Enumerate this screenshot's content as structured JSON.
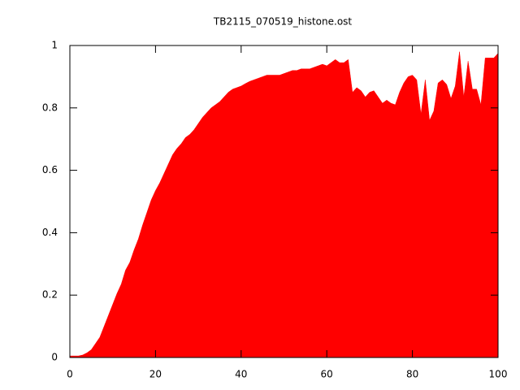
{
  "chart_data": {
    "type": "area",
    "title": "TB2115_070519_histone.ost",
    "x": [
      0,
      1,
      2,
      3,
      4,
      5,
      6,
      7,
      8,
      9,
      10,
      11,
      12,
      13,
      14,
      15,
      16,
      17,
      18,
      19,
      20,
      21,
      22,
      23,
      24,
      25,
      26,
      27,
      28,
      29,
      30,
      31,
      32,
      33,
      34,
      35,
      36,
      37,
      38,
      39,
      40,
      41,
      42,
      43,
      44,
      45,
      46,
      47,
      48,
      49,
      50,
      51,
      52,
      53,
      54,
      55,
      56,
      57,
      58,
      59,
      60,
      61,
      62,
      63,
      64,
      65,
      66,
      67,
      68,
      69,
      70,
      71,
      72,
      73,
      74,
      75,
      76,
      77,
      78,
      79,
      80,
      81,
      82,
      83,
      84,
      85,
      86,
      87,
      88,
      89,
      90,
      91,
      92,
      93,
      94,
      95,
      96,
      97,
      98,
      99,
      100
    ],
    "values": [
      0.005,
      0.005,
      0.005,
      0.008,
      0.015,
      0.025,
      0.045,
      0.065,
      0.1,
      0.135,
      0.17,
      0.205,
      0.235,
      0.28,
      0.305,
      0.345,
      0.38,
      0.425,
      0.465,
      0.505,
      0.535,
      0.56,
      0.59,
      0.62,
      0.65,
      0.67,
      0.685,
      0.705,
      0.715,
      0.73,
      0.75,
      0.77,
      0.785,
      0.8,
      0.81,
      0.82,
      0.835,
      0.85,
      0.86,
      0.865,
      0.87,
      0.878,
      0.885,
      0.89,
      0.895,
      0.9,
      0.905,
      0.905,
      0.905,
      0.905,
      0.91,
      0.915,
      0.92,
      0.92,
      0.925,
      0.925,
      0.925,
      0.93,
      0.935,
      0.94,
      0.935,
      0.945,
      0.955,
      0.945,
      0.945,
      0.955,
      0.85,
      0.865,
      0.855,
      0.835,
      0.85,
      0.855,
      0.835,
      0.815,
      0.825,
      0.815,
      0.81,
      0.85,
      0.88,
      0.9,
      0.905,
      0.89,
      0.78,
      0.89,
      0.76,
      0.79,
      0.88,
      0.89,
      0.875,
      0.83,
      0.87,
      0.98,
      0.835,
      0.95,
      0.86,
      0.86,
      0.81,
      0.96,
      0.96,
      0.96,
      0.975
    ],
    "color": "#ff0000",
    "xlim": [
      0,
      100
    ],
    "ylim": [
      0,
      1
    ],
    "xticks": [
      0,
      20,
      40,
      60,
      80,
      100
    ],
    "yticks": [
      0,
      0.2,
      0.4,
      0.6,
      0.8,
      1
    ]
  }
}
